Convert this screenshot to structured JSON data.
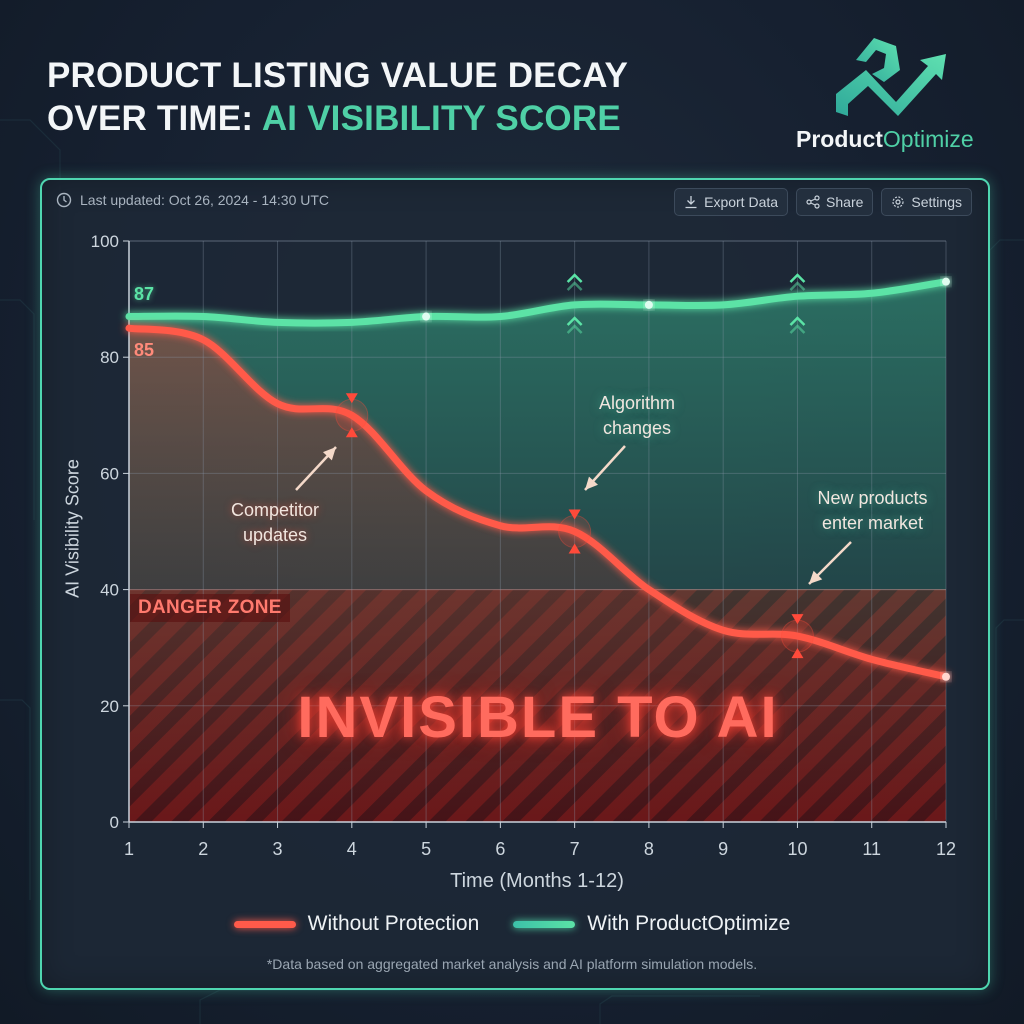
{
  "header": {
    "title_line1": "PRODUCT LISTING VALUE DECAY",
    "title_line2_prefix": "OVER TIME: ",
    "title_line2_accent": "AI VISIBILITY SCORE"
  },
  "brand": {
    "name_bold": "Product",
    "name_light": "Optimize",
    "logo_icon": "chart-arrow-up-logo"
  },
  "toolbar": {
    "last_updated": "Last updated: Oct 26, 2024 - 14:30 UTC",
    "clock_icon": "clock-icon",
    "export_label": "Export Data",
    "share_label": "Share",
    "settings_label": "Settings"
  },
  "colors": {
    "accent_green": "#4fd0a6",
    "line_green": "#5be3a6",
    "line_red": "#ff5a4a",
    "danger_fill": "#7a1414",
    "panel_border": "#4fd6b0",
    "background": "#18222f"
  },
  "chart_data": {
    "type": "line",
    "title": "Product Listing Value Decay Over Time: AI Visibility Score",
    "xlabel": "Time (Months 1-12)",
    "ylabel": "AI Visibility Score",
    "x": [
      1,
      2,
      3,
      4,
      5,
      6,
      7,
      8,
      9,
      10,
      11,
      12
    ],
    "xlim": [
      1,
      12
    ],
    "ylim": [
      0,
      100
    ],
    "yticks": [
      0,
      20,
      40,
      60,
      80,
      100
    ],
    "grid": true,
    "legend_position": "bottom",
    "series": [
      {
        "name": "Without Protection",
        "color": "#ff5a4a",
        "values": [
          85,
          83,
          72,
          70,
          57,
          51,
          50,
          40,
          33,
          32,
          28,
          25
        ]
      },
      {
        "name": "With ProductOptimize",
        "color": "#5be3a6",
        "values": [
          87,
          87,
          86,
          86,
          87,
          87,
          89,
          89,
          89,
          90.5,
          91,
          93
        ]
      }
    ],
    "start_labels": {
      "with": "87",
      "without": "85"
    },
    "danger_zone": {
      "from": 0,
      "to": 40,
      "label": "DANGER ZONE",
      "text": "INVISIBLE TO AI"
    },
    "annotations": [
      {
        "x": 4,
        "y": 70,
        "text": "Competitor updates"
      },
      {
        "x": 7,
        "y": 50,
        "text": "Algorithm changes"
      },
      {
        "x": 10,
        "y": 32,
        "text": "New products enter market"
      }
    ]
  },
  "axis": {
    "y_ticks": [
      "0",
      "20",
      "40",
      "60",
      "80",
      "100"
    ],
    "x_ticks": [
      "1",
      "2",
      "3",
      "4",
      "5",
      "6",
      "7",
      "8",
      "9",
      "10",
      "11",
      "12"
    ],
    "x_label": "Time (Months 1-12)",
    "y_label": "AI Visibility Score"
  },
  "annotations": {
    "competitor_line1": "Competitor",
    "competitor_line2": "updates",
    "algorithm_line1": "Algorithm",
    "algorithm_line2": "changes",
    "newproducts_line1": "New products",
    "newproducts_line2": "enter market",
    "danger_zone": "DANGER ZONE",
    "invisible": "INVISIBLE TO AI",
    "label_87": "87",
    "label_85": "85"
  },
  "legend": {
    "without": "Without Protection",
    "with": "With ProductOptimize"
  },
  "footnote": "*Data based on aggregated market analysis and AI platform simulation models."
}
